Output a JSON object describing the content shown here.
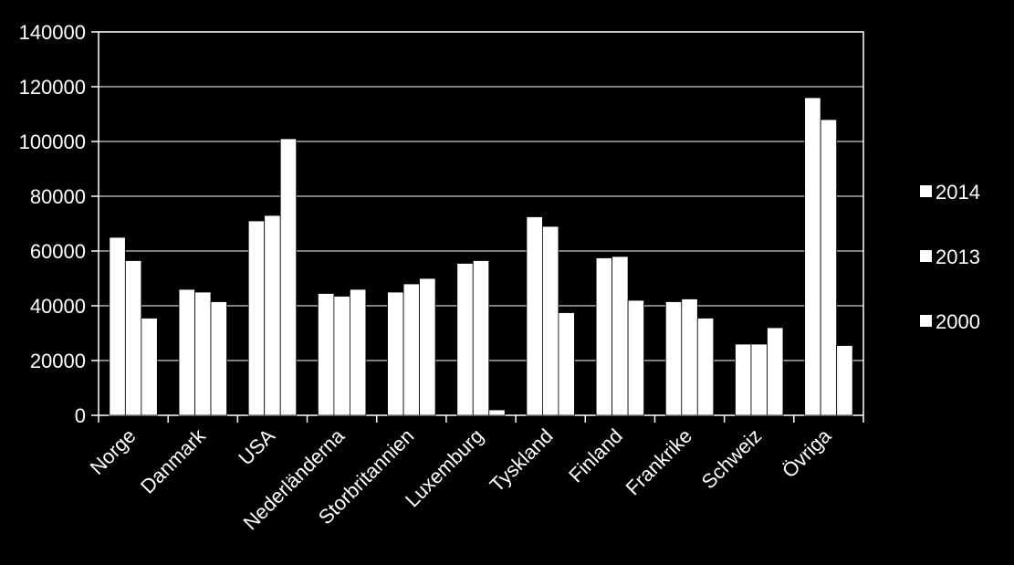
{
  "chart_data": {
    "type": "bar",
    "title": "",
    "xlabel": "",
    "ylabel": "",
    "ylim": [
      0,
      140000
    ],
    "yticks": [
      0,
      20000,
      40000,
      60000,
      80000,
      100000,
      120000,
      140000
    ],
    "ytick_labels": [
      "0",
      "20000",
      "40000",
      "60000",
      "80000",
      "100000",
      "120000",
      "140000"
    ],
    "grid": "horizontal",
    "legend_position": "right",
    "categories": [
      "Norge",
      "Danmark",
      "USA",
      "Nederländerna",
      "Storbritannien",
      "Luxemburg",
      "Tyskland",
      "Finland",
      "Frankrike",
      "Schweiz",
      "Övriga"
    ],
    "series": [
      {
        "name": "2014",
        "color": "#ffffff",
        "values": [
          65000,
          46000,
          71000,
          44500,
          45000,
          55500,
          72500,
          57500,
          41500,
          26000,
          116000
        ]
      },
      {
        "name": "2013",
        "color": "#ffffff",
        "values": [
          56500,
          45000,
          73000,
          43500,
          48000,
          56500,
          69000,
          58000,
          42500,
          26000,
          108000
        ]
      },
      {
        "name": "2000",
        "color": "#ffffff",
        "values": [
          35500,
          41500,
          101000,
          46000,
          50000,
          2000,
          37500,
          42000,
          35500,
          32000,
          25500
        ]
      }
    ],
    "background": "#000000",
    "axis_color": "#ffffff"
  }
}
